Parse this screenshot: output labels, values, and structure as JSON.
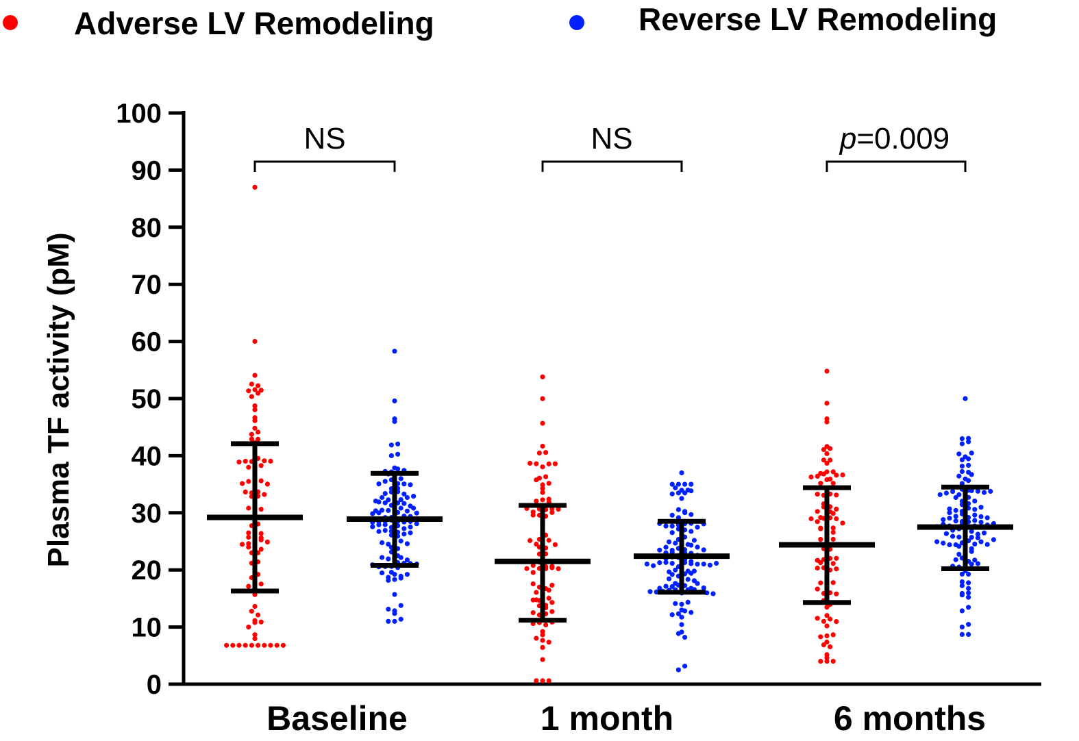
{
  "chart_data": {
    "type": "scatter",
    "subtype": "dot-plot-with-mean-sd",
    "title": "",
    "xlabel": "",
    "ylabel": "Plasma TF activity (pM)",
    "ylim": [
      0,
      100
    ],
    "yticks": [
      "0",
      "10",
      "20",
      "30",
      "40",
      "50",
      "60",
      "70",
      "80",
      "90",
      "100"
    ],
    "categories": [
      "Baseline",
      "1 month",
      "6 months"
    ],
    "legend_position": "top",
    "series": [
      {
        "name": "Adverse LV Remodeling",
        "color": "#ff0000",
        "stats": [
          {
            "mean": 29.2,
            "sd_low": 16.3,
            "sd_high": 42.1,
            "n": 95,
            "spread": 16,
            "max": 87.0,
            "min": 6.8
          },
          {
            "mean": 21.5,
            "sd_low": 11.2,
            "sd_high": 31.3,
            "n": 95,
            "spread": 12,
            "max": 53.8,
            "min": 0.6
          },
          {
            "mean": 24.4,
            "sd_low": 14.3,
            "sd_high": 34.4,
            "n": 95,
            "spread": 12,
            "max": 54.8,
            "min": 4.0
          }
        ]
      },
      {
        "name": "Reverse LV Remodeling",
        "color": "#0020ff",
        "stats": [
          {
            "mean": 28.9,
            "sd_low": 20.8,
            "sd_high": 36.9,
            "n": 120,
            "spread": 8,
            "max": 58.3,
            "min": 11.0
          },
          {
            "mean": 22.4,
            "sd_low": 16.1,
            "sd_high": 28.5,
            "n": 120,
            "spread": 7,
            "max": 37.0,
            "min": 2.5
          },
          {
            "mean": 27.5,
            "sd_low": 20.2,
            "sd_high": 34.5,
            "n": 120,
            "spread": 7,
            "max": 50.0,
            "min": 8.7
          }
        ]
      }
    ],
    "annotations": [
      {
        "category": "Baseline",
        "text": "NS",
        "italic_prefix": ""
      },
      {
        "category": "1 month",
        "text": "NS",
        "italic_prefix": ""
      },
      {
        "category": "6 months",
        "text": "=0.009",
        "italic_prefix": "p"
      }
    ]
  }
}
